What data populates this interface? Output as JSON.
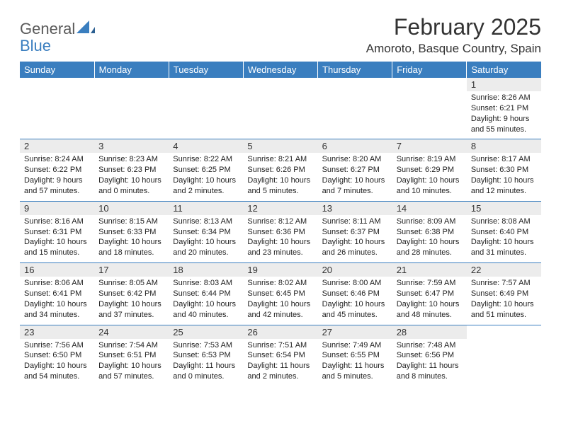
{
  "logo": {
    "text1": "General",
    "text2": "Blue",
    "text1_color": "#5a5a5a",
    "text2_color": "#3a7ebf"
  },
  "title": "February 2025",
  "location": "Amoroto, Basque Country, Spain",
  "colors": {
    "header_bg": "#3a7ebf",
    "header_fg": "#ffffff",
    "daynum_bg": "#ececec",
    "text": "#222222",
    "rule": "#3a7ebf"
  },
  "font": {
    "family": "Arial",
    "title_size": 32,
    "location_size": 17,
    "header_size": 13,
    "daynum_size": 13,
    "body_size": 11
  },
  "weekdays": [
    "Sunday",
    "Monday",
    "Tuesday",
    "Wednesday",
    "Thursday",
    "Friday",
    "Saturday"
  ],
  "weeks": [
    [
      null,
      null,
      null,
      null,
      null,
      null,
      {
        "n": "1",
        "sr": "Sunrise: 8:26 AM",
        "ss": "Sunset: 6:21 PM",
        "d1": "Daylight: 9 hours",
        "d2": "and 55 minutes."
      }
    ],
    [
      {
        "n": "2",
        "sr": "Sunrise: 8:24 AM",
        "ss": "Sunset: 6:22 PM",
        "d1": "Daylight: 9 hours",
        "d2": "and 57 minutes."
      },
      {
        "n": "3",
        "sr": "Sunrise: 8:23 AM",
        "ss": "Sunset: 6:23 PM",
        "d1": "Daylight: 10 hours",
        "d2": "and 0 minutes."
      },
      {
        "n": "4",
        "sr": "Sunrise: 8:22 AM",
        "ss": "Sunset: 6:25 PM",
        "d1": "Daylight: 10 hours",
        "d2": "and 2 minutes."
      },
      {
        "n": "5",
        "sr": "Sunrise: 8:21 AM",
        "ss": "Sunset: 6:26 PM",
        "d1": "Daylight: 10 hours",
        "d2": "and 5 minutes."
      },
      {
        "n": "6",
        "sr": "Sunrise: 8:20 AM",
        "ss": "Sunset: 6:27 PM",
        "d1": "Daylight: 10 hours",
        "d2": "and 7 minutes."
      },
      {
        "n": "7",
        "sr": "Sunrise: 8:19 AM",
        "ss": "Sunset: 6:29 PM",
        "d1": "Daylight: 10 hours",
        "d2": "and 10 minutes."
      },
      {
        "n": "8",
        "sr": "Sunrise: 8:17 AM",
        "ss": "Sunset: 6:30 PM",
        "d1": "Daylight: 10 hours",
        "d2": "and 12 minutes."
      }
    ],
    [
      {
        "n": "9",
        "sr": "Sunrise: 8:16 AM",
        "ss": "Sunset: 6:31 PM",
        "d1": "Daylight: 10 hours",
        "d2": "and 15 minutes."
      },
      {
        "n": "10",
        "sr": "Sunrise: 8:15 AM",
        "ss": "Sunset: 6:33 PM",
        "d1": "Daylight: 10 hours",
        "d2": "and 18 minutes."
      },
      {
        "n": "11",
        "sr": "Sunrise: 8:13 AM",
        "ss": "Sunset: 6:34 PM",
        "d1": "Daylight: 10 hours",
        "d2": "and 20 minutes."
      },
      {
        "n": "12",
        "sr": "Sunrise: 8:12 AM",
        "ss": "Sunset: 6:36 PM",
        "d1": "Daylight: 10 hours",
        "d2": "and 23 minutes."
      },
      {
        "n": "13",
        "sr": "Sunrise: 8:11 AM",
        "ss": "Sunset: 6:37 PM",
        "d1": "Daylight: 10 hours",
        "d2": "and 26 minutes."
      },
      {
        "n": "14",
        "sr": "Sunrise: 8:09 AM",
        "ss": "Sunset: 6:38 PM",
        "d1": "Daylight: 10 hours",
        "d2": "and 28 minutes."
      },
      {
        "n": "15",
        "sr": "Sunrise: 8:08 AM",
        "ss": "Sunset: 6:40 PM",
        "d1": "Daylight: 10 hours",
        "d2": "and 31 minutes."
      }
    ],
    [
      {
        "n": "16",
        "sr": "Sunrise: 8:06 AM",
        "ss": "Sunset: 6:41 PM",
        "d1": "Daylight: 10 hours",
        "d2": "and 34 minutes."
      },
      {
        "n": "17",
        "sr": "Sunrise: 8:05 AM",
        "ss": "Sunset: 6:42 PM",
        "d1": "Daylight: 10 hours",
        "d2": "and 37 minutes."
      },
      {
        "n": "18",
        "sr": "Sunrise: 8:03 AM",
        "ss": "Sunset: 6:44 PM",
        "d1": "Daylight: 10 hours",
        "d2": "and 40 minutes."
      },
      {
        "n": "19",
        "sr": "Sunrise: 8:02 AM",
        "ss": "Sunset: 6:45 PM",
        "d1": "Daylight: 10 hours",
        "d2": "and 42 minutes."
      },
      {
        "n": "20",
        "sr": "Sunrise: 8:00 AM",
        "ss": "Sunset: 6:46 PM",
        "d1": "Daylight: 10 hours",
        "d2": "and 45 minutes."
      },
      {
        "n": "21",
        "sr": "Sunrise: 7:59 AM",
        "ss": "Sunset: 6:47 PM",
        "d1": "Daylight: 10 hours",
        "d2": "and 48 minutes."
      },
      {
        "n": "22",
        "sr": "Sunrise: 7:57 AM",
        "ss": "Sunset: 6:49 PM",
        "d1": "Daylight: 10 hours",
        "d2": "and 51 minutes."
      }
    ],
    [
      {
        "n": "23",
        "sr": "Sunrise: 7:56 AM",
        "ss": "Sunset: 6:50 PM",
        "d1": "Daylight: 10 hours",
        "d2": "and 54 minutes."
      },
      {
        "n": "24",
        "sr": "Sunrise: 7:54 AM",
        "ss": "Sunset: 6:51 PM",
        "d1": "Daylight: 10 hours",
        "d2": "and 57 minutes."
      },
      {
        "n": "25",
        "sr": "Sunrise: 7:53 AM",
        "ss": "Sunset: 6:53 PM",
        "d1": "Daylight: 11 hours",
        "d2": "and 0 minutes."
      },
      {
        "n": "26",
        "sr": "Sunrise: 7:51 AM",
        "ss": "Sunset: 6:54 PM",
        "d1": "Daylight: 11 hours",
        "d2": "and 2 minutes."
      },
      {
        "n": "27",
        "sr": "Sunrise: 7:49 AM",
        "ss": "Sunset: 6:55 PM",
        "d1": "Daylight: 11 hours",
        "d2": "and 5 minutes."
      },
      {
        "n": "28",
        "sr": "Sunrise: 7:48 AM",
        "ss": "Sunset: 6:56 PM",
        "d1": "Daylight: 11 hours",
        "d2": "and 8 minutes."
      },
      null
    ]
  ]
}
